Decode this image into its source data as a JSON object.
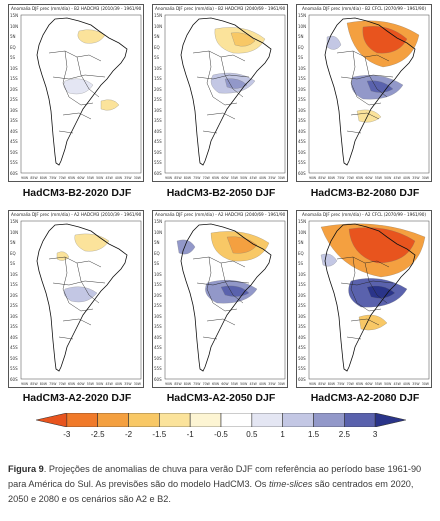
{
  "panels": [
    {
      "title": "Anomalia DJF prec (mm/dia) - B2 HADCM3 (2010/39 - 1961/90)",
      "label": "HadCM3-B2-2020 DJF"
    },
    {
      "title": "Anomalia DJF prec (mm/dia) - B2 HADCM3 (2040/69 - 1961/90)",
      "label": "HadCM3-B2-2050 DJF"
    },
    {
      "title": "Anomalia DJF prec (mm/dia) - B2 CFCL (2070/99 - 1961/90)",
      "label": "HadCM3-B2-2080 DJF"
    },
    {
      "title": "Anomalia DJF prec (mm/dia) - A2 HADCM3 (2010/39 - 1961/90)",
      "label": "HadCM3-A2-2020 DJF"
    },
    {
      "title": "Anomalia DJF prec (mm/dia) - A2 HADCM3 (2040/69 - 1961/90)",
      "label": "HadCM3-A2-2050 DJF"
    },
    {
      "title": "Anomalia DJF prec (mm/dia) - A2 CFCL (2070/99 - 1961/90)",
      "label": "HadCM3-A2-2080 DJF"
    }
  ],
  "lat_labels": [
    "15N",
    "10N",
    "5N",
    "EQ",
    "5S",
    "10S",
    "15S",
    "20S",
    "25S",
    "30S",
    "35S",
    "40S",
    "45S",
    "50S",
    "55S",
    "60S"
  ],
  "lon_labels": [
    "90W",
    "85W",
    "80W",
    "75W",
    "70W",
    "65W",
    "60W",
    "55W",
    "50W",
    "45W",
    "40W",
    "35W",
    "30W"
  ],
  "colorbar": {
    "ticks": [
      "-3",
      "-2.5",
      "-2",
      "-1.5",
      "-1",
      "-0.5",
      "0.5",
      "1",
      "1.5",
      "2.5",
      "3"
    ],
    "colors": [
      "#e8541e",
      "#f07a2a",
      "#f4a040",
      "#f8c866",
      "#fbe39b",
      "#fdf5d3",
      "#ffffff",
      "#e4e6f3",
      "#c3c7e4",
      "#9298c9",
      "#5a62ad",
      "#2a3489"
    ]
  },
  "caption": {
    "figure_label": "Figura 9",
    "text": ". Projeções de anomalias de chuva para verão DJF com referência ao período base 1961-90 para América do Sul. As previsões são do modelo HadCM3. Os ",
    "italic": "time-slices",
    "text_end": " são centrados em 2020, 2050 e 2080 e os cenários são A2 e B2."
  }
}
